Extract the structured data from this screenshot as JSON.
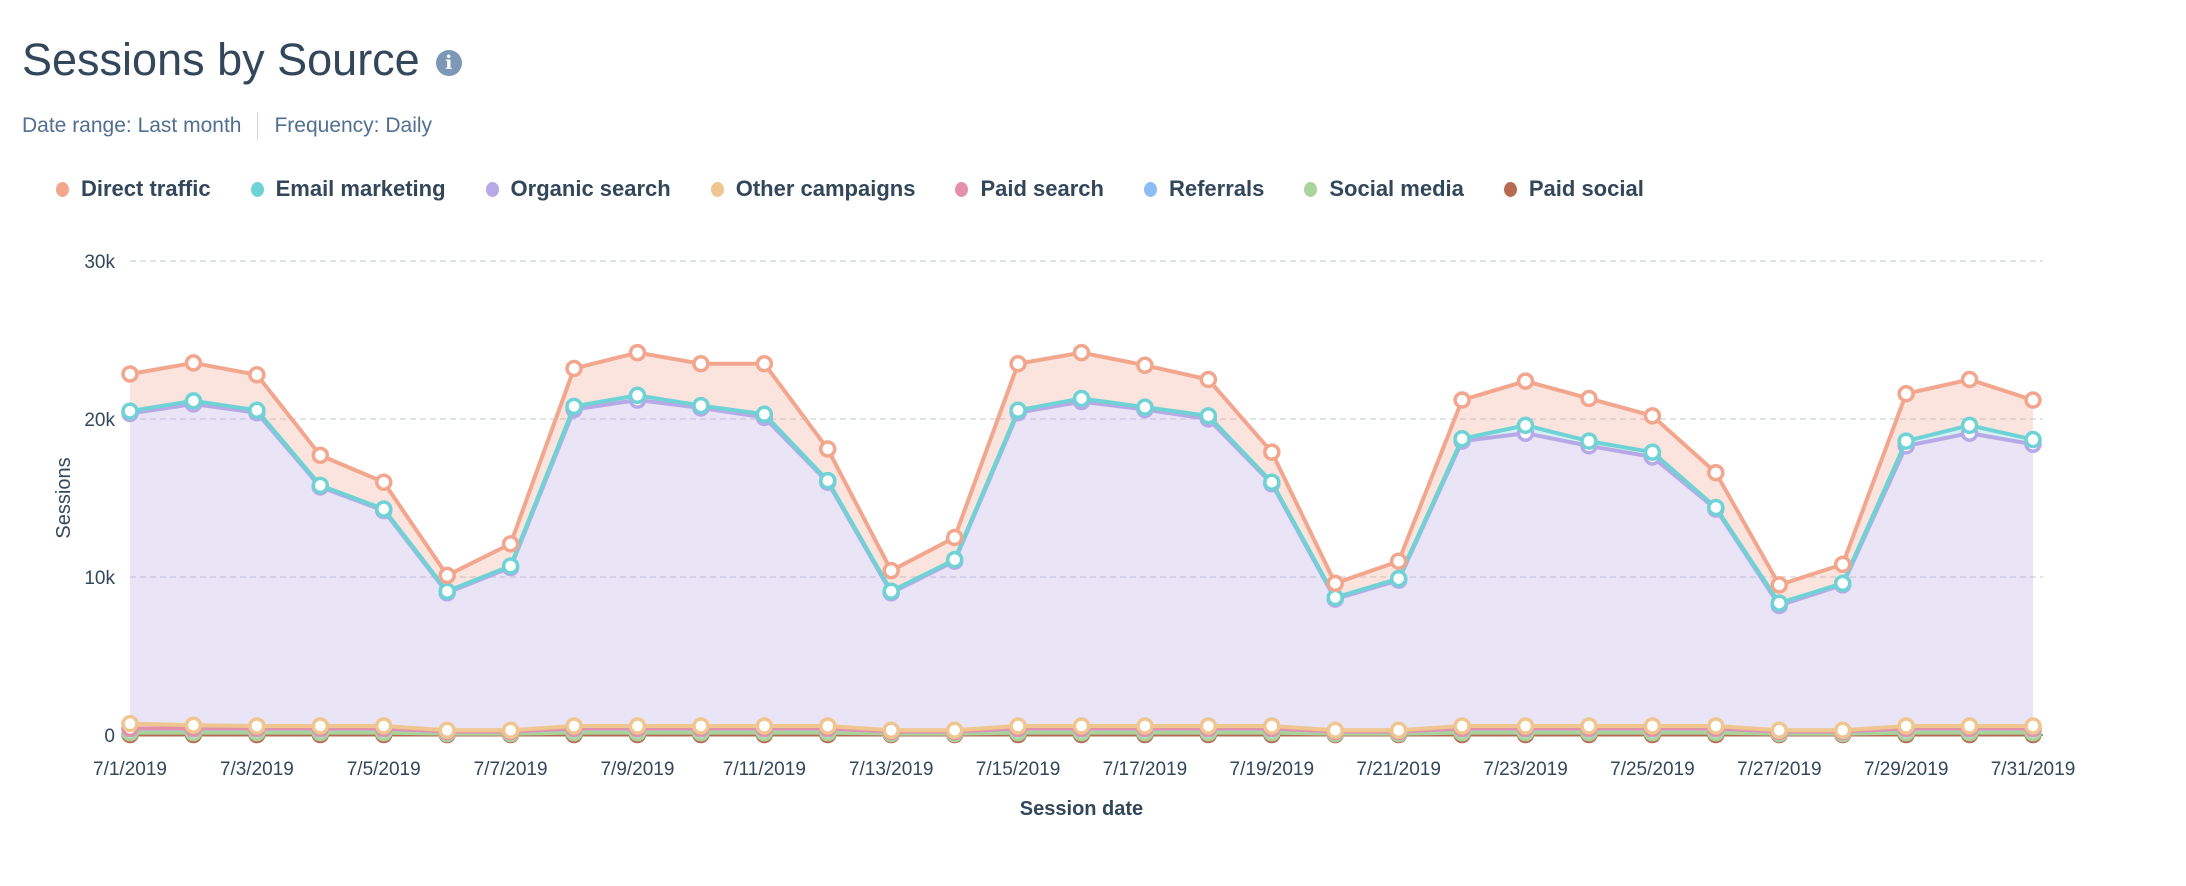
{
  "header": {
    "title": "Sessions by Source",
    "info_icon": "info-icon",
    "date_range": "Date range: Last month",
    "frequency": "Frequency: Daily"
  },
  "chart_data": {
    "type": "area",
    "stacked": true,
    "xlabel": "Session date",
    "ylabel": "Sessions",
    "ylim": [
      0,
      30000
    ],
    "yticks": [
      0,
      10000,
      20000,
      30000
    ],
    "ytick_labels": [
      "0",
      "10k",
      "20k",
      "30k"
    ],
    "grid": true,
    "legend_position": "top-left",
    "x": [
      "7/1/2019",
      "7/2/2019",
      "7/3/2019",
      "7/4/2019",
      "7/5/2019",
      "7/6/2019",
      "7/7/2019",
      "7/8/2019",
      "7/9/2019",
      "7/10/2019",
      "7/11/2019",
      "7/12/2019",
      "7/13/2019",
      "7/14/2019",
      "7/15/2019",
      "7/16/2019",
      "7/17/2019",
      "7/18/2019",
      "7/19/2019",
      "7/20/2019",
      "7/21/2019",
      "7/22/2019",
      "7/23/2019",
      "7/24/2019",
      "7/25/2019",
      "7/26/2019",
      "7/27/2019",
      "7/28/2019",
      "7/29/2019",
      "7/30/2019",
      "7/31/2019"
    ],
    "xtick_labels": [
      "7/1/2019",
      "7/3/2019",
      "7/5/2019",
      "7/7/2019",
      "7/9/2019",
      "7/11/2019",
      "7/13/2019",
      "7/15/2019",
      "7/17/2019",
      "7/19/2019",
      "7/21/2019",
      "7/23/2019",
      "7/25/2019",
      "7/27/2019",
      "7/29/2019",
      "7/31/2019"
    ],
    "series": [
      {
        "name": "Direct traffic",
        "color": "#f2a68e",
        "values": [
          2350,
          2400,
          2250,
          1900,
          1700,
          1000,
          1400,
          2400,
          2700,
          2650,
          3200,
          2000,
          1300,
          1400,
          2950,
          2900,
          2650,
          2300,
          1900,
          900,
          1100,
          2450,
          2800,
          2700,
          2300,
          2200,
          1150,
          1200,
          3000,
          2900,
          2500
        ]
      },
      {
        "name": "Email marketing",
        "color": "#6fd3d6",
        "values": [
          150,
          200,
          150,
          100,
          100,
          100,
          100,
          200,
          300,
          150,
          200,
          100,
          100,
          100,
          150,
          200,
          150,
          200,
          100,
          100,
          100,
          150,
          500,
          300,
          300,
          100,
          150,
          100,
          300,
          500,
          300
        ]
      },
      {
        "name": "Organic search",
        "color": "#b7a9e6",
        "values": [
          19630,
          20330,
          19830,
          15130,
          13630,
          8700,
          10300,
          20030,
          20630,
          20130,
          19530,
          15430,
          8700,
          10700,
          19830,
          20530,
          20030,
          19430,
          15330,
          8300,
          9500,
          18030,
          18530,
          17730,
          17030,
          13730,
          7900,
          9200,
          17730,
          18530,
          17830
        ]
      },
      {
        "name": "Other campaigns",
        "color": "#efc68f",
        "values": [
          300,
          200,
          150,
          150,
          150,
          80,
          80,
          150,
          150,
          150,
          150,
          150,
          80,
          80,
          150,
          150,
          150,
          150,
          150,
          80,
          80,
          150,
          150,
          150,
          150,
          150,
          80,
          80,
          150,
          150,
          150
        ]
      },
      {
        "name": "Paid search",
        "color": "#e391ab",
        "values": [
          20,
          20,
          20,
          20,
          20,
          10,
          10,
          20,
          20,
          20,
          20,
          20,
          10,
          10,
          20,
          20,
          20,
          20,
          20,
          10,
          10,
          20,
          20,
          20,
          20,
          20,
          10,
          10,
          20,
          20,
          20
        ]
      },
      {
        "name": "Referrals",
        "color": "#8dbdf7",
        "values": [
          250,
          250,
          250,
          250,
          250,
          120,
          120,
          250,
          250,
          250,
          250,
          250,
          120,
          120,
          250,
          250,
          250,
          250,
          250,
          120,
          120,
          250,
          250,
          250,
          250,
          250,
          120,
          120,
          250,
          250,
          250
        ]
      },
      {
        "name": "Social media",
        "color": "#a9d49b",
        "values": [
          120,
          120,
          120,
          120,
          120,
          60,
          60,
          120,
          120,
          120,
          120,
          120,
          60,
          60,
          120,
          120,
          120,
          120,
          120,
          60,
          60,
          120,
          120,
          120,
          120,
          120,
          60,
          60,
          120,
          120,
          120
        ]
      },
      {
        "name": "Paid social",
        "color": "#b86b53",
        "values": [
          30,
          30,
          30,
          30,
          30,
          30,
          30,
          30,
          30,
          30,
          30,
          30,
          30,
          30,
          30,
          30,
          30,
          30,
          30,
          30,
          30,
          30,
          30,
          30,
          30,
          30,
          30,
          30,
          30,
          30,
          30
        ]
      }
    ]
  }
}
